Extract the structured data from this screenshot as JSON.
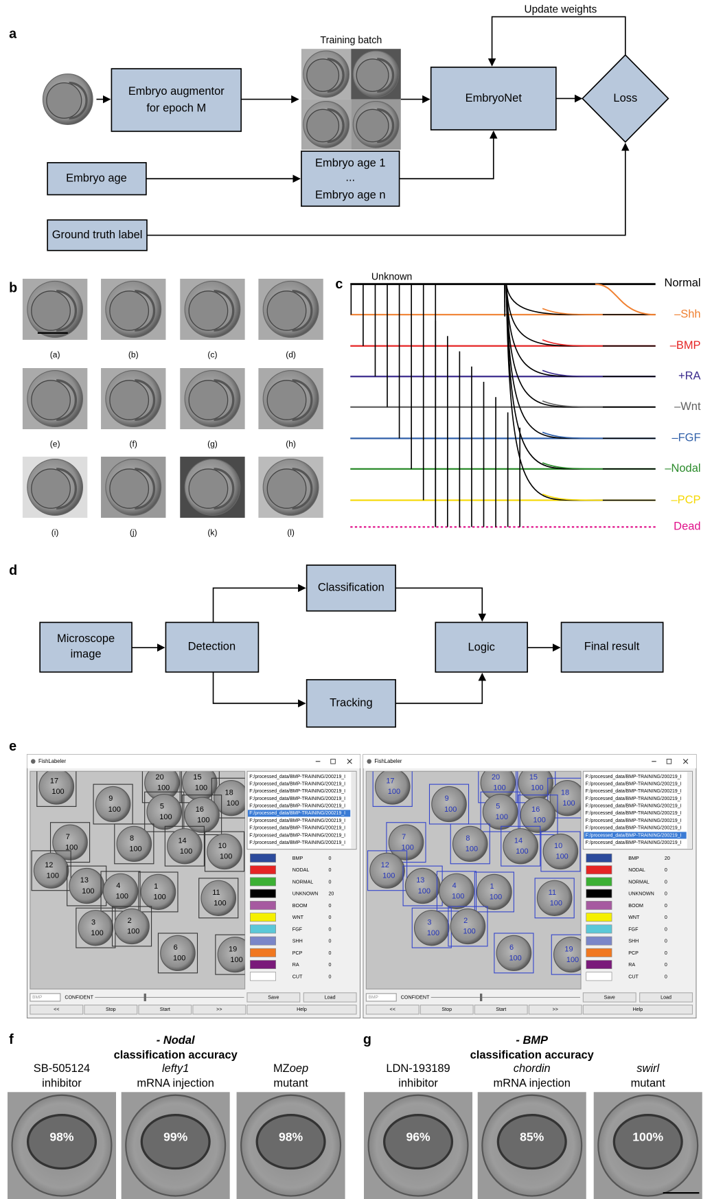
{
  "panel_a": {
    "label": "a",
    "update_weights": "Update weights",
    "training_batch": "Training batch",
    "augmentor": [
      "Embryo augmentor",
      "for epoch M"
    ],
    "embryonet": "EmbryoNet",
    "loss": "Loss",
    "embryo_age": "Embryo age",
    "age_list": [
      "Embryo  age 1",
      "...",
      "Embryo age n"
    ],
    "ground_truth": "Ground truth label"
  },
  "panel_b": {
    "label": "b",
    "captions": [
      "(a)",
      "(b)",
      "(c)",
      "(d)",
      "(e)",
      "(f)",
      "(g)",
      "(h)",
      "(i)",
      "(j)",
      "(k)",
      "(l)"
    ]
  },
  "panel_c": {
    "label": "c",
    "unknown": "Unknown",
    "normal": "Normal",
    "classes": [
      {
        "name": "–Shh",
        "color": "#f08030"
      },
      {
        "name": "–BMP",
        "color": "#e52424"
      },
      {
        "name": "+RA",
        "color": "#3a2a8c"
      },
      {
        "name": "–Wnt",
        "color": "#606060"
      },
      {
        "name": "–FGF",
        "color": "#2f5fa8"
      },
      {
        "name": "–Nodal",
        "color": "#2a8a2a"
      },
      {
        "name": "–PCP",
        "color": "#f5d800"
      },
      {
        "name": "Dead",
        "color": "#e0108a"
      }
    ]
  },
  "panel_d": {
    "label": "d",
    "microscope": [
      "Microscope",
      "image"
    ],
    "detection": "Detection",
    "classification": "Classification",
    "tracking": "Tracking",
    "logic": "Logic",
    "final": "Final result"
  },
  "panel_e": {
    "label": "e",
    "windows": [
      {
        "title": "FishLabeler",
        "files": [
          "F:/processed_data/BMP-TRAINING/200219_I",
          "F:/processed_data/BMP-TRAINING/200219_I",
          "F:/processed_data/BMP-TRAINING/200219_I",
          "F:/processed_data/BMP-TRAINING/200219_I",
          "F:/processed_data/BMP-TRAINING/200219_I",
          "F:/processed_data/BMP-TRAINING/200219_I",
          "F:/processed_data/BMP-TRAINING/200219_I",
          "F:/processed_data/BMP-TRAINING/200219_I",
          "F:/processed_data/BMP-TRAINING/200219_I",
          "F:/processed_data/BMP-TRAINING/200219_I"
        ],
        "legend": [
          {
            "name": "BMP",
            "color": "#2b4a9c",
            "count": 0
          },
          {
            "name": "NODAL",
            "color": "#e52424",
            "count": 0
          },
          {
            "name": "NORMAL",
            "color": "#3cb034",
            "count": 0
          },
          {
            "name": "UNKNOWN",
            "color": "#000000",
            "count": 20
          },
          {
            "name": "BOOM",
            "color": "#a65aa0",
            "count": 0
          },
          {
            "name": "WNT",
            "color": "#f5f000",
            "count": 0
          },
          {
            "name": "FGF",
            "color": "#5bc8d8",
            "count": 0
          },
          {
            "name": "SHH",
            "color": "#7a86c8",
            "count": 0
          },
          {
            "name": "PCP",
            "color": "#f07820",
            "count": 0
          },
          {
            "name": "RA",
            "color": "#7a1a7a",
            "count": 0
          },
          {
            "name": "CUT",
            "color": "#ffffff",
            "count": 0
          }
        ],
        "dropdown": "BMP",
        "confident": "CONFIDENT",
        "buttons": [
          "Save",
          "Load",
          "<<",
          "Stop",
          "Start",
          ">>",
          "Help"
        ],
        "box_color": "#333333",
        "detections": [
          {
            "id": 17,
            "score": 100
          },
          {
            "id": 20,
            "score": 100
          },
          {
            "id": 15,
            "score": 100
          },
          {
            "id": 18,
            "score": 100
          },
          {
            "id": 9,
            "score": 100
          },
          {
            "id": 5,
            "score": 100
          },
          {
            "id": 16,
            "score": 100
          },
          {
            "id": 7,
            "score": 100
          },
          {
            "id": 8,
            "score": 100
          },
          {
            "id": 14,
            "score": 100
          },
          {
            "id": 10,
            "score": 100
          },
          {
            "id": 12,
            "score": 100
          },
          {
            "id": 13,
            "score": 100
          },
          {
            "id": 4,
            "score": 100
          },
          {
            "id": 1,
            "score": 100
          },
          {
            "id": 11,
            "score": 100
          },
          {
            "id": 3,
            "score": 100
          },
          {
            "id": 2,
            "score": 100
          },
          {
            "id": 6,
            "score": 100
          },
          {
            "id": 19,
            "score": 100
          }
        ]
      },
      {
        "title": "FishLabeler",
        "files": [
          "F:/processed_data/BMP-TRAINING/200219_I",
          "F:/processed_data/BMP-TRAINING/200219_I",
          "F:/processed_data/BMP-TRAINING/200219_I",
          "F:/processed_data/BMP-TRAINING/200219_I",
          "F:/processed_data/BMP-TRAINING/200219_I",
          "F:/processed_data/BMP-TRAINING/200219_I",
          "F:/processed_data/BMP-TRAINING/200219_I",
          "F:/processed_data/BMP-TRAINING/200219_I",
          "F:/processed_data/BMP-TRAINING/200219_I",
          "F:/processed_data/BMP-TRAINING/200219_I"
        ],
        "legend": [
          {
            "name": "BMP",
            "color": "#2b4a9c",
            "count": 20
          },
          {
            "name": "NODAL",
            "color": "#e52424",
            "count": 0
          },
          {
            "name": "NORMAL",
            "color": "#3cb034",
            "count": 0
          },
          {
            "name": "UNKNOWN",
            "color": "#000000",
            "count": 0
          },
          {
            "name": "BOOM",
            "color": "#a65aa0",
            "count": 0
          },
          {
            "name": "WNT",
            "color": "#f5f000",
            "count": 0
          },
          {
            "name": "FGF",
            "color": "#5bc8d8",
            "count": 0
          },
          {
            "name": "SHH",
            "color": "#7a86c8",
            "count": 0
          },
          {
            "name": "PCP",
            "color": "#f07820",
            "count": 0
          },
          {
            "name": "RA",
            "color": "#7a1a7a",
            "count": 0
          },
          {
            "name": "CUT",
            "color": "#ffffff",
            "count": 0
          }
        ],
        "dropdown": "BMP",
        "confident": "CONFIDENT",
        "buttons": [
          "Save",
          "Load",
          "<<",
          "Stop",
          "Start",
          ">>",
          "Help"
        ],
        "box_color": "#3344cc",
        "detections": [
          {
            "id": 17,
            "score": 100
          },
          {
            "id": 20,
            "score": 100
          },
          {
            "id": 15,
            "score": 100
          },
          {
            "id": 18,
            "score": 100
          },
          {
            "id": 9,
            "score": 100
          },
          {
            "id": 5,
            "score": 100
          },
          {
            "id": 16,
            "score": 100
          },
          {
            "id": 7,
            "score": 100
          },
          {
            "id": 8,
            "score": 100
          },
          {
            "id": 14,
            "score": 100
          },
          {
            "id": 10,
            "score": 100
          },
          {
            "id": 12,
            "score": 100
          },
          {
            "id": 13,
            "score": 100
          },
          {
            "id": 4,
            "score": 100
          },
          {
            "id": 1,
            "score": 100
          },
          {
            "id": 11,
            "score": 100
          },
          {
            "id": 3,
            "score": 100
          },
          {
            "id": 2,
            "score": 100
          },
          {
            "id": 6,
            "score": 100
          },
          {
            "id": 19,
            "score": 100
          }
        ]
      }
    ]
  },
  "panel_f": {
    "label": "f",
    "title": "- Nodal",
    "subtitle": "classification accuracy",
    "conditions": [
      {
        "line1": [
          {
            "text": "SB-505124",
            "italic": false
          }
        ],
        "line2": "inhibitor",
        "accuracy": "98%"
      },
      {
        "line1": [
          {
            "text": "lefty1",
            "italic": true
          }
        ],
        "line2": "mRNA injection",
        "accuracy": "99%"
      },
      {
        "line1": [
          {
            "text": "MZ",
            "italic": false
          },
          {
            "text": "oep",
            "italic": true
          }
        ],
        "line2": "mutant",
        "accuracy": "98%"
      }
    ]
  },
  "panel_g": {
    "label": "g",
    "title": "- BMP",
    "subtitle": "classification accuracy",
    "conditions": [
      {
        "line1": [
          {
            "text": "LDN-193189",
            "italic": false
          }
        ],
        "line2": "inhibitor",
        "accuracy": "96%"
      },
      {
        "line1": [
          {
            "text": "chordin",
            "italic": true
          }
        ],
        "line2": "mRNA injection",
        "accuracy": "85%"
      },
      {
        "line1": [
          {
            "text": "swirl",
            "italic": true
          }
        ],
        "line2": "mutant",
        "accuracy": "100%"
      }
    ]
  }
}
